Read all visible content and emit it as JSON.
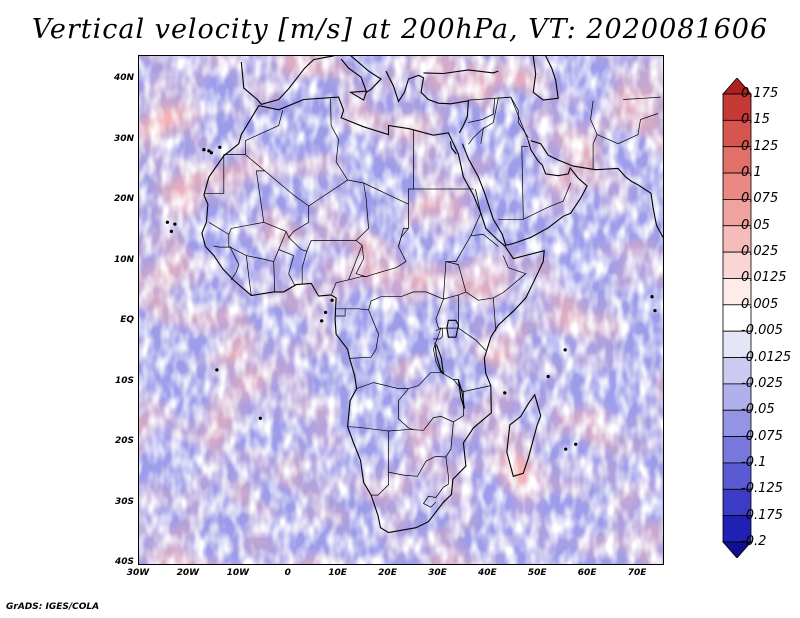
{
  "title": "Vertical velocity [m/s] at 200hPa, VT: 2020081606",
  "map": {
    "lat_labels": [
      "40N",
      "30N",
      "20N",
      "10N",
      "EQ",
      "10S",
      "20S",
      "30S",
      "40S"
    ],
    "lon_labels": [
      "30W",
      "20W",
      "10W",
      "0",
      "10E",
      "20E",
      "30E",
      "40E",
      "50E",
      "60E",
      "70E"
    ],
    "lat_range": [
      -40,
      44
    ],
    "lon_range": [
      -30,
      75
    ]
  },
  "colorbar": {
    "labels": [
      "0.175",
      "0.15",
      "0.125",
      "0.1",
      "0.075",
      "0.05",
      "0.025",
      "0.0125",
      "0.005",
      "-0.005",
      "-0.0125",
      "-0.025",
      "-0.05",
      "-0.075",
      "-0.1",
      "-0.125",
      "-0.175",
      "-0.2"
    ],
    "colors": [
      "#b0201e",
      "#c63a36",
      "#d6554f",
      "#e26f68",
      "#ea8984",
      "#f0a39e",
      "#f5bdb9",
      "#f9d6d3",
      "#fdecea",
      "#ffffff",
      "#e5e5f8",
      "#cbcbf2",
      "#b0b0ec",
      "#9494e4",
      "#7777dc",
      "#5a5ad2",
      "#3b3bc6",
      "#2020b4",
      "#10108e"
    ]
  },
  "credit": "GrADS: IGES/COLA"
}
